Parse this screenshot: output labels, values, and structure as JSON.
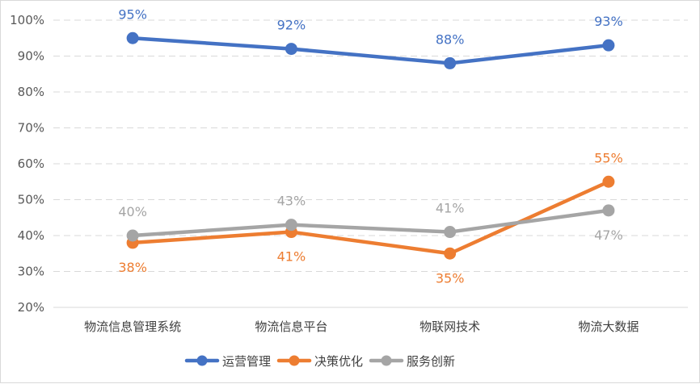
{
  "chart_data": {
    "type": "line",
    "categories": [
      "物流信息管理系统",
      "物流信息平台",
      "物联网技术",
      "物流大数据"
    ],
    "ylim": [
      20,
      100
    ],
    "yticks": [
      20,
      30,
      40,
      50,
      60,
      70,
      80,
      90,
      100
    ],
    "ytick_labels": [
      "20%",
      "30%",
      "40%",
      "50%",
      "60%",
      "70%",
      "80%",
      "90%",
      "100%"
    ],
    "grid": true,
    "legend_position": "bottom",
    "series": [
      {
        "name": "运营管理",
        "color": "#4472C4",
        "values": [
          95,
          92,
          88,
          93
        ],
        "labels": [
          "95%",
          "92%",
          "88%",
          "93%"
        ],
        "label_pos": [
          "above",
          "above",
          "above",
          "above"
        ]
      },
      {
        "name": "决策优化",
        "color": "#ED7D31",
        "values": [
          38,
          41,
          35,
          55
        ],
        "labels": [
          "38%",
          "41%",
          "35%",
          "55%"
        ],
        "label_pos": [
          "below",
          "below",
          "below",
          "above"
        ]
      },
      {
        "name": "服务创新",
        "color": "#A5A5A5",
        "values": [
          40,
          43,
          41,
          47
        ],
        "labels": [
          "40%",
          "43%",
          "41%",
          "47%"
        ],
        "label_pos": [
          "above",
          "above",
          "above",
          "below"
        ]
      }
    ]
  }
}
